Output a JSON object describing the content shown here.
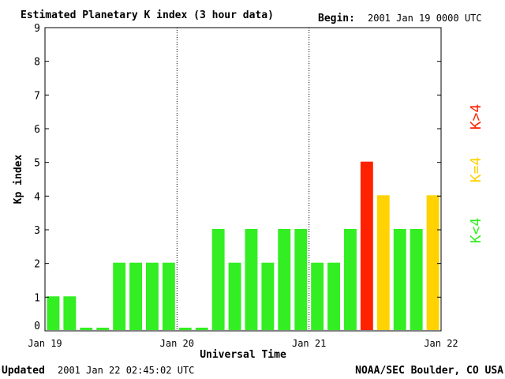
{
  "header": {
    "title": "Estimated Planetary K index (3 hour data)",
    "begin_label": "Begin:",
    "begin_value": "2001 Jan 19 0000 UTC"
  },
  "footer": {
    "updated_label": "Updated",
    "updated_value": "2001 Jan 22 02:45:02 UTC",
    "source": "NOAA/SEC Boulder, CO USA"
  },
  "legend": {
    "low": "K<4",
    "equal": "K=4",
    "high": "K>4",
    "colors": {
      "low": "#33ee22",
      "equal": "#ffd200",
      "high": "#ff2200"
    }
  },
  "chart_data": {
    "type": "bar",
    "title": "Estimated Planetary K index (3 hour data)",
    "xlabel": "Universal Time",
    "ylabel": "Kp index",
    "ylim": [
      0,
      9
    ],
    "yticks": [
      "0",
      "1",
      "2",
      "3",
      "4",
      "5",
      "6",
      "7",
      "8",
      "9"
    ],
    "xticks": [
      "Jan 19",
      "Jan 20",
      "Jan 21",
      "Jan 22"
    ],
    "day_separators": [
      "Jan 20",
      "Jan 21"
    ],
    "bars_per_day": 8,
    "values": [
      1,
      1,
      0,
      0,
      2,
      2,
      2,
      2,
      0,
      0,
      3,
      2,
      3,
      2,
      3,
      3,
      2,
      2,
      3,
      5,
      4,
      3,
      3,
      4
    ],
    "legend_position": "right"
  }
}
